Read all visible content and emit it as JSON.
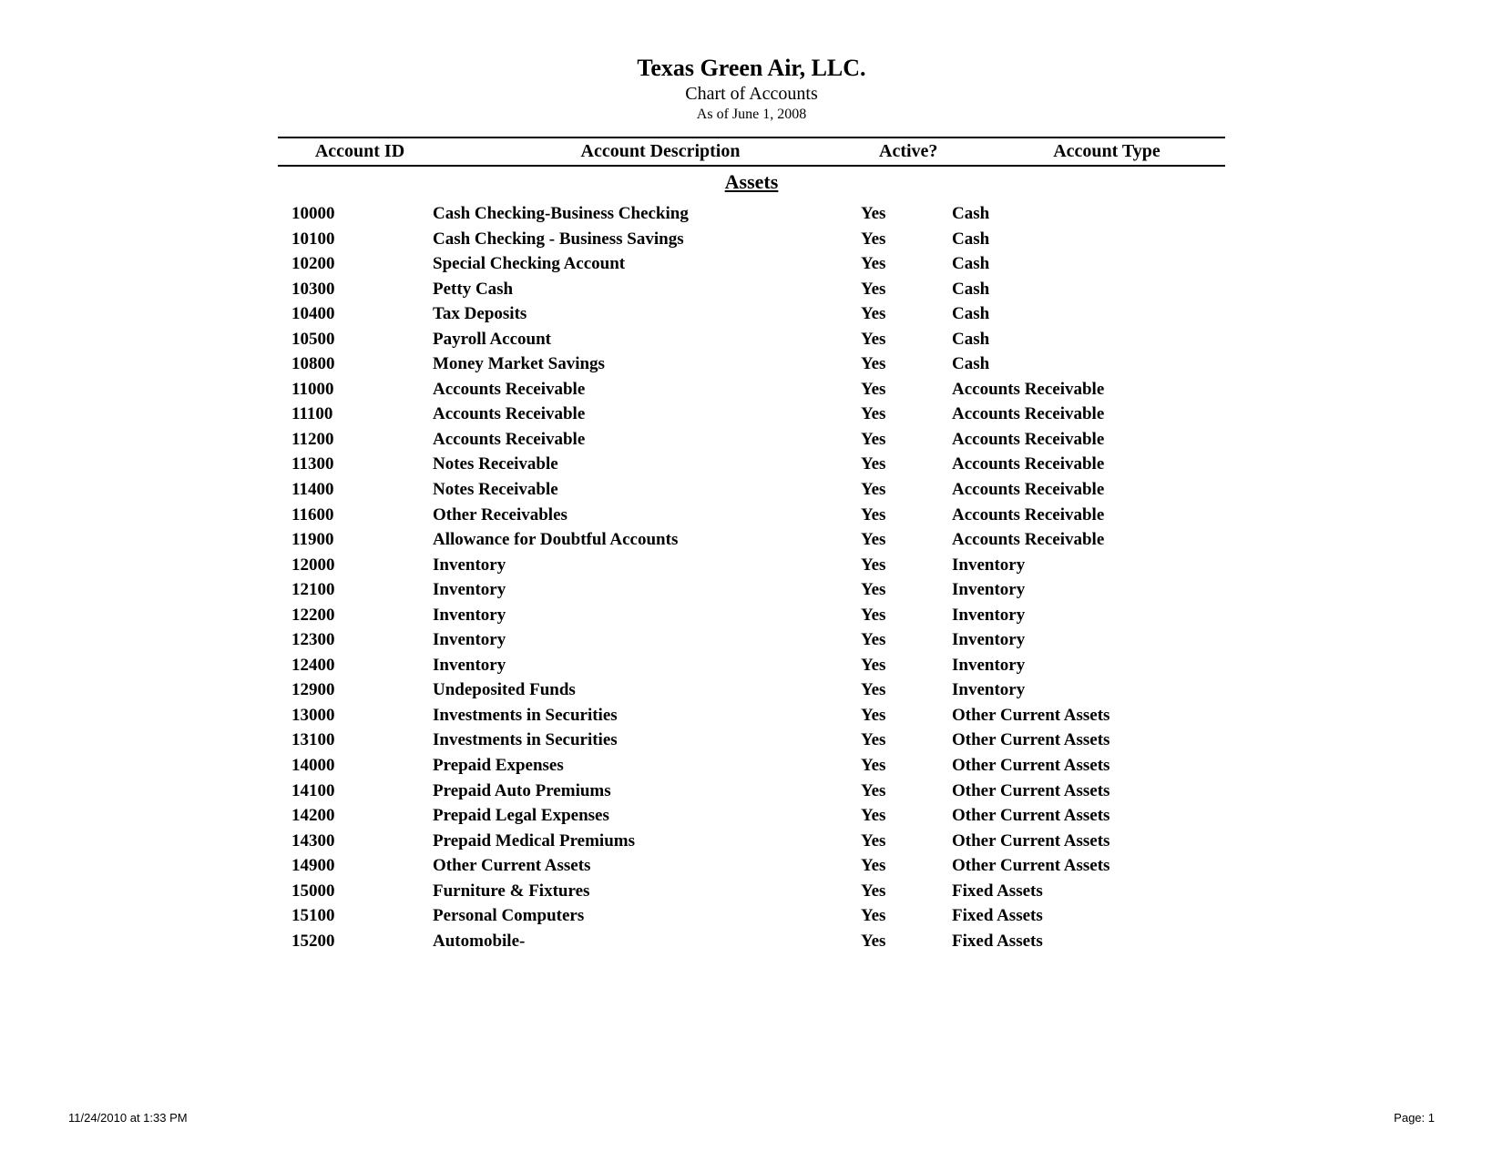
{
  "header": {
    "company_name": "Texas Green Air, LLC.",
    "report_title": "Chart of Accounts",
    "as_of_date": "As of June 1, 2008"
  },
  "columns": {
    "id": "Account ID",
    "description": "Account Description",
    "active": "Active?",
    "type": "Account Type"
  },
  "section_title": "Assets",
  "rows": [
    {
      "id": "10000",
      "description": "Cash Checking-Business Checking",
      "active": "Yes",
      "type": "Cash"
    },
    {
      "id": "10100",
      "description": "Cash Checking - Business Savings",
      "active": "Yes",
      "type": "Cash"
    },
    {
      "id": "10200",
      "description": "Special Checking Account",
      "active": "Yes",
      "type": "Cash"
    },
    {
      "id": "10300",
      "description": "Petty Cash",
      "active": "Yes",
      "type": "Cash"
    },
    {
      "id": "10400",
      "description": "Tax Deposits",
      "active": "Yes",
      "type": "Cash"
    },
    {
      "id": "10500",
      "description": "Payroll Account",
      "active": "Yes",
      "type": "Cash"
    },
    {
      "id": "10800",
      "description": "Money Market Savings",
      "active": "Yes",
      "type": "Cash"
    },
    {
      "id": "11000",
      "description": "Accounts Receivable",
      "active": "Yes",
      "type": "Accounts Receivable"
    },
    {
      "id": "11100",
      "description": "Accounts Receivable",
      "active": "Yes",
      "type": "Accounts Receivable"
    },
    {
      "id": "11200",
      "description": "Accounts Receivable",
      "active": "Yes",
      "type": "Accounts Receivable"
    },
    {
      "id": "11300",
      "description": "Notes Receivable",
      "active": "Yes",
      "type": "Accounts Receivable"
    },
    {
      "id": "11400",
      "description": "Notes Receivable",
      "active": "Yes",
      "type": "Accounts Receivable"
    },
    {
      "id": "11600",
      "description": "Other Receivables",
      "active": "Yes",
      "type": "Accounts Receivable"
    },
    {
      "id": "11900",
      "description": "Allowance for Doubtful Accounts",
      "active": "Yes",
      "type": "Accounts Receivable"
    },
    {
      "id": "12000",
      "description": "Inventory",
      "active": "Yes",
      "type": "Inventory"
    },
    {
      "id": "12100",
      "description": "Inventory",
      "active": "Yes",
      "type": "Inventory"
    },
    {
      "id": "12200",
      "description": "Inventory",
      "active": "Yes",
      "type": "Inventory"
    },
    {
      "id": "12300",
      "description": "Inventory",
      "active": "Yes",
      "type": "Inventory"
    },
    {
      "id": "12400",
      "description": "Inventory",
      "active": "Yes",
      "type": "Inventory"
    },
    {
      "id": "12900",
      "description": "Undeposited Funds",
      "active": "Yes",
      "type": "Inventory"
    },
    {
      "id": "13000",
      "description": "Investments in Securities",
      "active": "Yes",
      "type": "Other Current Assets"
    },
    {
      "id": "13100",
      "description": "Investments in Securities",
      "active": "Yes",
      "type": "Other Current Assets"
    },
    {
      "id": "14000",
      "description": "Prepaid Expenses",
      "active": "Yes",
      "type": "Other Current Assets"
    },
    {
      "id": "14100",
      "description": "Prepaid Auto Premiums",
      "active": "Yes",
      "type": "Other Current Assets"
    },
    {
      "id": "14200",
      "description": "Prepaid Legal Expenses",
      "active": "Yes",
      "type": "Other Current Assets"
    },
    {
      "id": "14300",
      "description": "Prepaid Medical Premiums",
      "active": "Yes",
      "type": "Other Current Assets"
    },
    {
      "id": "14900",
      "description": "Other Current Assets",
      "active": "Yes",
      "type": "Other Current Assets"
    },
    {
      "id": "15000",
      "description": "Furniture & Fixtures",
      "active": "Yes",
      "type": "Fixed Assets"
    },
    {
      "id": "15100",
      "description": "Personal Computers",
      "active": "Yes",
      "type": "Fixed Assets"
    },
    {
      "id": "15200",
      "description": "Automobile-",
      "active": "Yes",
      "type": "Fixed Assets"
    }
  ],
  "footer": {
    "timestamp": "11/24/2010 at 1:33 PM",
    "page": "Page: 1"
  }
}
